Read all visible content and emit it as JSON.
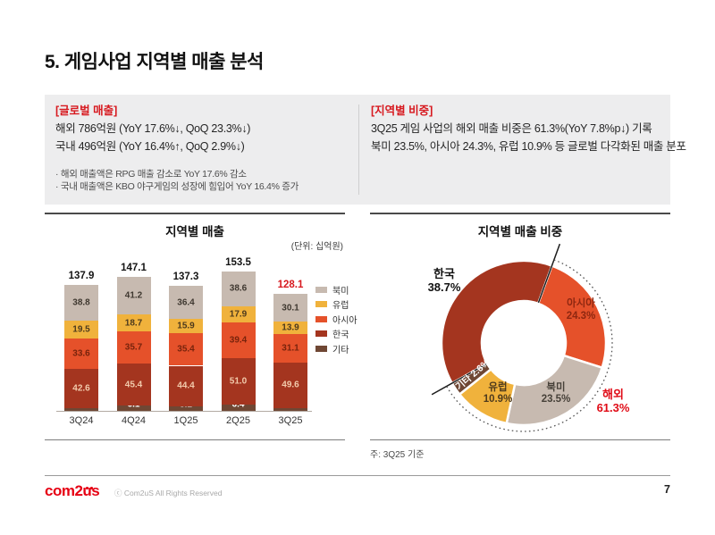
{
  "page": {
    "title": "5. 게임사업 지역별 매출 분석"
  },
  "summary": {
    "global": {
      "heading": "[글로벌 매출]",
      "lines": [
        "해외 786억원 (YoY 17.6%↓, QoQ 23.3%↓)",
        "국내 496억원 (YoY 16.4%↑, QoQ 2.9%↓)"
      ],
      "bullets": [
        "해외 매출액은 RPG 매출 감소로 YoY 17.6% 감소",
        "국내 매출액은 KBO 야구게임의 성장에 힘입어 YoY 16.4% 증가"
      ]
    },
    "regional": {
      "heading": "[지역별 비중]",
      "lines": [
        "3Q25 게임 사업의 해외 매출 비중은 61.3%(YoY 7.8%p↓) 기록",
        "북미 23.5%, 아시아 24.3%, 유럽 10.9% 등 글로벌 다각화된 매출 분포"
      ]
    }
  },
  "chart_data": [
    {
      "type": "bar",
      "stacked": true,
      "title": "지역별 매출",
      "unit_label": "(단위: 십억원)",
      "categories": [
        "3Q24",
        "4Q24",
        "1Q25",
        "2Q25",
        "3Q25"
      ],
      "series": [
        {
          "name": "북미",
          "color": "#c7bab0",
          "values": [
            38.8,
            41.2,
            36.4,
            38.6,
            30.1
          ]
        },
        {
          "name": "유럽",
          "color": "#f0b23c",
          "values": [
            19.5,
            18.7,
            15.9,
            17.9,
            13.9
          ]
        },
        {
          "name": "아시아",
          "color": "#e5512a",
          "values": [
            33.6,
            35.7,
            35.4,
            39.4,
            31.1
          ]
        },
        {
          "name": "한국",
          "color": "#a4351f",
          "values": [
            42.6,
            45.4,
            44.4,
            51.0,
            49.6
          ]
        },
        {
          "name": "기타",
          "color": "#6f4734",
          "values": [
            3.4,
            6.1,
            5.1,
            6.4,
            3.4
          ]
        }
      ],
      "totals": [
        137.9,
        147.1,
        137.3,
        153.5,
        128.1
      ],
      "totals_highlight_index": 4,
      "legend_position": "right",
      "grid": false
    },
    {
      "type": "pie",
      "donut": true,
      "title": "지역별 매출 비중",
      "start_angle_deg": 20,
      "slices": [
        {
          "label": "아시아",
          "value": 24.3,
          "color": "#e5512a"
        },
        {
          "label": "북미",
          "value": 23.5,
          "color": "#c7bab0"
        },
        {
          "label": "유럽",
          "value": 10.9,
          "color": "#f0b23c"
        },
        {
          "label": "기타",
          "value": 2.6,
          "color": "#6f4734"
        },
        {
          "label": "한국",
          "value": 38.7,
          "color": "#a4351f"
        }
      ],
      "callout": {
        "label": "해외",
        "value_text": "61.3%",
        "covers_slices": [
          "아시아",
          "북미",
          "유럽",
          "기타"
        ]
      },
      "note": "주: 3Q25 기준"
    }
  ],
  "footer": {
    "logo_text": "com2us",
    "copyright": "ⓒ Com2uS All Rights Reserved",
    "page_number": "7"
  }
}
